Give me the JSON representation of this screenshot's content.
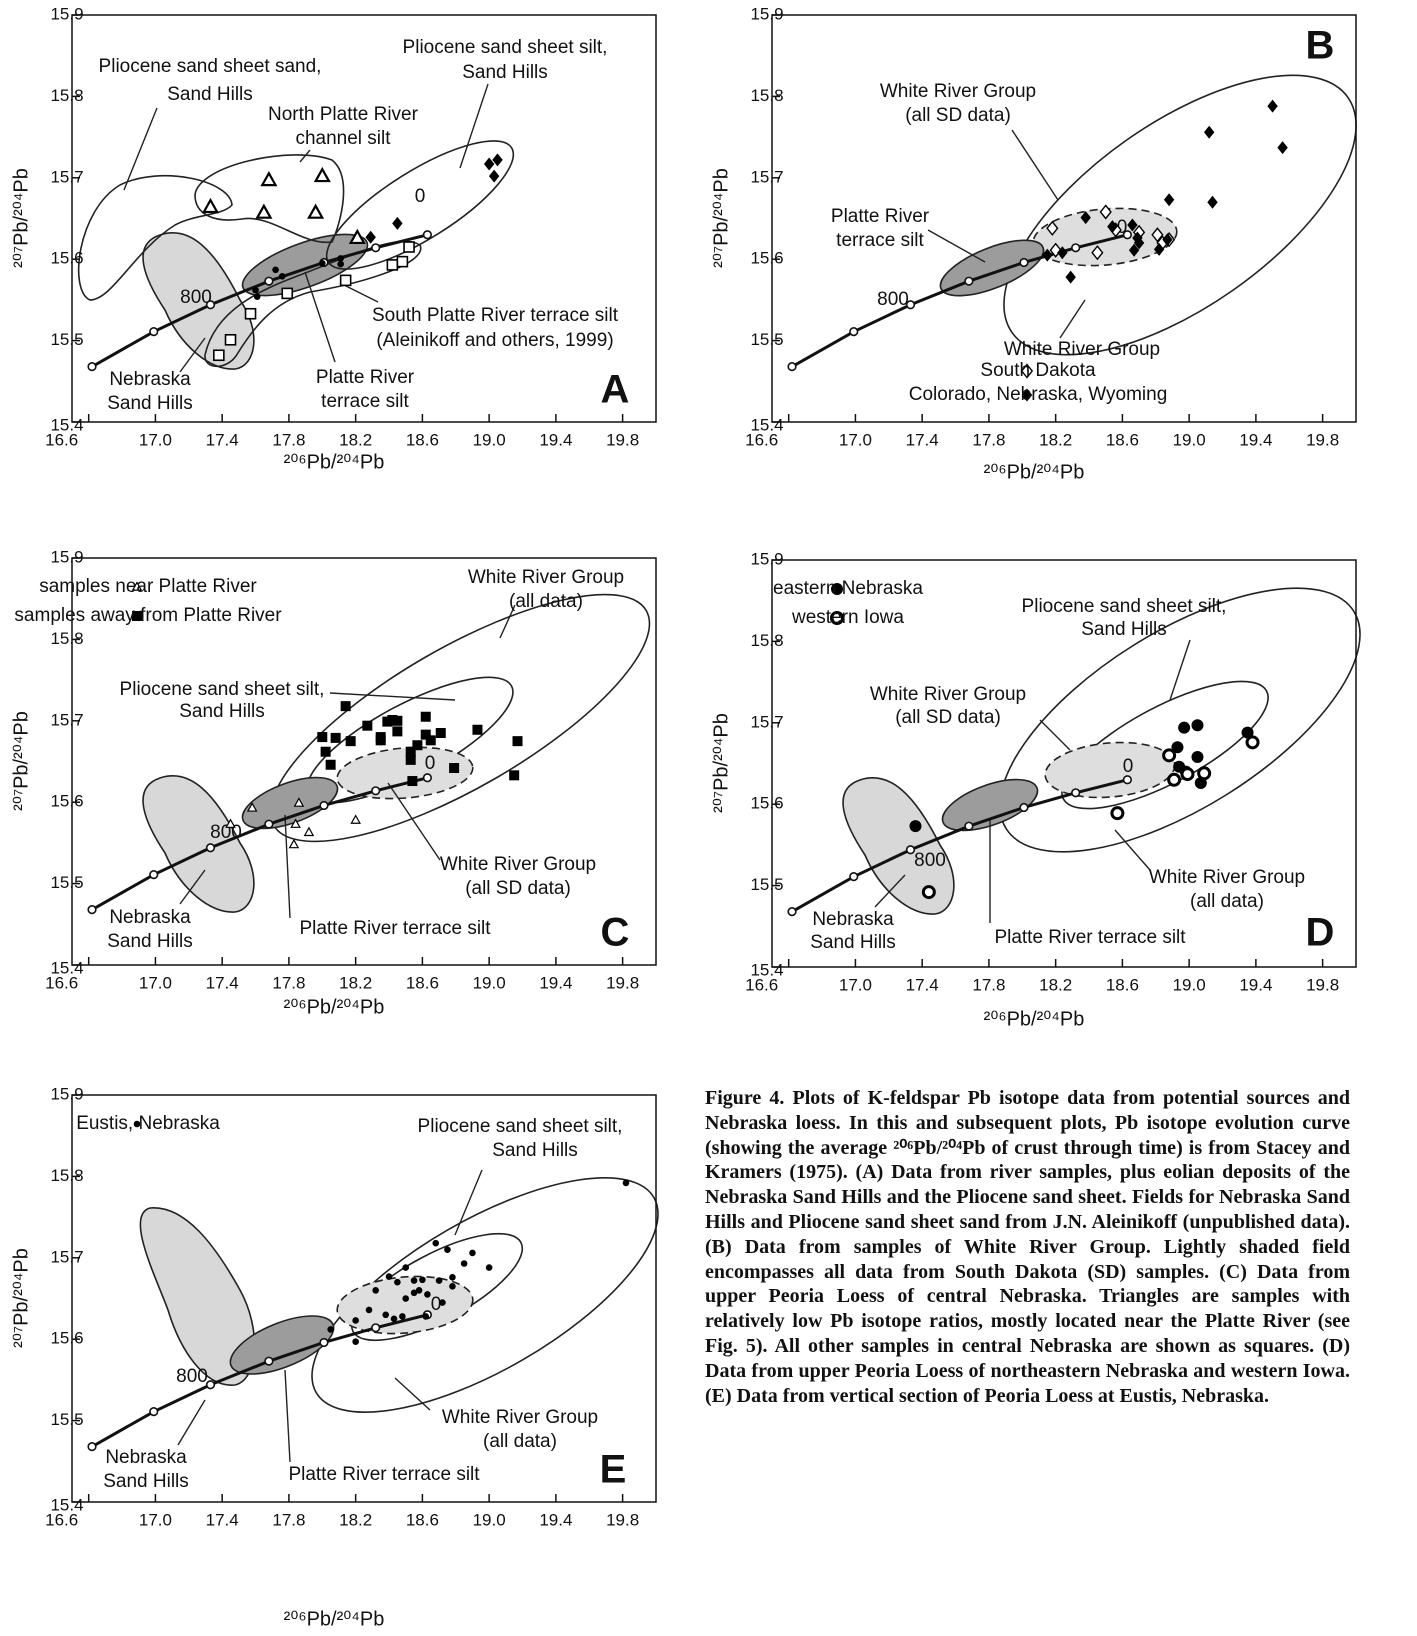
{
  "chart_data": [
    {
      "type": "scatter",
      "panel_label": "A",
      "x_label": "²⁰⁶Pb/²⁰⁴Pb",
      "y_label": "²⁰⁷Pb/²⁰⁴Pb",
      "xlim": [
        16.5,
        20.0
      ],
      "ylim": [
        15.4,
        15.9
      ],
      "xticks": [
        16.6,
        {
          "value": 17,
          "label": "17.0"
        },
        17.4,
        17.8,
        18.2,
        18.6,
        {
          "value": 19,
          "label": "19.0"
        },
        19.4,
        19.8
      ],
      "yticks": [
        15.4,
        15.5,
        15.6,
        15.7,
        15.8,
        15.9
      ],
      "curve": {
        "x": [
          16.62,
          16.99,
          17.33,
          17.68,
          18.01,
          18.32,
          18.63
        ],
        "y": [
          15.468,
          15.511,
          15.544,
          15.573,
          15.596,
          15.614,
          15.63
        ]
      },
      "series": [
        {
          "marker": "triangle-open",
          "color": "#000000",
          "x": [
            17.33,
            17.68,
            17.65,
            18.0,
            17.96,
            18.21
          ],
          "values": [
            15.664,
            15.697,
            15.657,
            15.702,
            15.657,
            15.626
          ]
        },
        {
          "marker": "square-open",
          "color": "#000000",
          "x": [
            17.38,
            17.45,
            17.57,
            17.79,
            18.14,
            18.42,
            18.48,
            18.52
          ],
          "values": [
            15.482,
            15.501,
            15.533,
            15.558,
            15.574,
            15.593,
            15.597,
            15.615
          ]
        },
        {
          "marker": "dot",
          "color": "#000000",
          "x": [
            17.6,
            17.61,
            17.72,
            17.76,
            18.0,
            18.11,
            18.11
          ],
          "values": [
            15.562,
            15.554,
            15.587,
            15.579,
            15.595,
            15.601,
            15.594
          ]
        },
        {
          "marker": "diamond",
          "color": "#000000",
          "x": [
            18.29,
            18.45,
            19.0,
            19.05,
            19.03
          ],
          "values": [
            15.627,
            15.644,
            15.717,
            15.722,
            15.702
          ]
        }
      ],
      "annotations": [
        "Pliocene sand sheet sand,",
        "Sand Hills",
        "Pliocene sand sheet silt,",
        "Sand Hills",
        "North Platte River",
        "channel silt",
        "0",
        "800",
        "South Platte River terrace silt",
        "(Aleinikoff and others, 1999)",
        "Nebraska",
        "Sand Hills",
        "Platte River",
        "terrace silt"
      ]
    },
    {
      "type": "scatter",
      "panel_label": "B",
      "x_label": "²⁰⁶Pb/²⁰⁴Pb",
      "y_label": "²⁰⁷Pb/²⁰⁴Pb",
      "xlim": [
        16.5,
        20.0
      ],
      "ylim": [
        15.4,
        15.9
      ],
      "xticks": [
        16.6,
        {
          "value": 17,
          "label": "17.0"
        },
        17.4,
        17.8,
        18.2,
        18.6,
        {
          "value": 19,
          "label": "19.0"
        },
        19.4,
        19.8
      ],
      "yticks": [
        15.4,
        15.5,
        15.6,
        15.7,
        15.8,
        15.9
      ],
      "curve": {
        "x": [
          16.62,
          16.99,
          17.33,
          17.68,
          18.01,
          18.32,
          18.63
        ],
        "y": [
          15.468,
          15.511,
          15.544,
          15.573,
          15.596,
          15.614,
          15.63
        ]
      },
      "legend": "lower right",
      "series": [
        {
          "name": "South Dakota",
          "marker": "diamond-open",
          "color": "#000000",
          "x": [
            18.18,
            18.2,
            18.5,
            18.45,
            18.56,
            18.7,
            18.81,
            18.84,
            18.88
          ],
          "values": [
            15.638,
            15.611,
            15.658,
            15.608,
            15.636,
            15.633,
            15.63,
            15.62,
            15.624
          ]
        },
        {
          "name": "Colorado, Nebraska, Wyoming",
          "marker": "diamond",
          "color": "#000000",
          "x": [
            18.24,
            18.38,
            18.29,
            18.54,
            18.69,
            18.66,
            18.67,
            18.7,
            18.88,
            18.82,
            18.87,
            19.12,
            19.14,
            19.5,
            19.56,
            18.15
          ],
          "values": [
            15.608,
            15.651,
            15.578,
            15.64,
            15.626,
            15.642,
            15.611,
            15.62,
            15.673,
            15.612,
            15.624,
            15.756,
            15.67,
            15.788,
            15.737,
            15.605
          ]
        }
      ],
      "annotations": [
        "White River Group",
        "(all SD data)",
        "Platte River",
        "terrace silt",
        "800",
        "0",
        "White River Group"
      ]
    },
    {
      "type": "scatter",
      "panel_label": "C",
      "x_label": "²⁰⁶Pb/²⁰⁴Pb",
      "y_label": "²⁰⁷Pb/²⁰⁴Pb",
      "xlim": [
        16.5,
        20.0
      ],
      "ylim": [
        15.4,
        15.9
      ],
      "xticks": [
        16.6,
        {
          "value": 17,
          "label": "17.0"
        },
        17.4,
        17.8,
        18.2,
        18.6,
        {
          "value": 19,
          "label": "19.0"
        },
        19.4,
        19.8
      ],
      "yticks": [
        15.4,
        15.5,
        15.6,
        15.7,
        15.8,
        15.9
      ],
      "curve": {
        "x": [
          16.62,
          16.99,
          17.33,
          17.68,
          18.01,
          18.32,
          18.63
        ],
        "y": [
          15.468,
          15.511,
          15.544,
          15.573,
          15.596,
          15.614,
          15.63
        ]
      },
      "legend": "upper left",
      "series": [
        {
          "name": "samples near Platte River",
          "marker": "triangle-small",
          "color": "#000000",
          "x": [
            17.45,
            17.58,
            17.86,
            17.84,
            17.83,
            17.92,
            18.2
          ],
          "values": [
            15.573,
            15.593,
            15.599,
            15.573,
            15.548,
            15.563,
            15.578
          ]
        },
        {
          "name": "samples away from Platte River",
          "marker": "square",
          "color": "#000000",
          "x": [
            18.14,
            18.0,
            18.02,
            18.05,
            18.08,
            18.17,
            18.27,
            18.35,
            18.35,
            18.39,
            18.42,
            18.45,
            18.45,
            18.53,
            18.53,
            18.54,
            18.57,
            18.62,
            18.62,
            18.65,
            18.71,
            18.79,
            18.93,
            19.17,
            19.15
          ],
          "values": [
            15.718,
            15.68,
            15.662,
            15.646,
            15.679,
            15.675,
            15.694,
            15.68,
            15.676,
            15.699,
            15.701,
            15.7,
            15.687,
            15.662,
            15.652,
            15.626,
            15.67,
            15.705,
            15.683,
            15.676,
            15.685,
            15.642,
            15.689,
            15.675,
            15.633
          ]
        }
      ],
      "annotations": [
        "White River Group",
        "(all data)",
        "Pliocene sand sheet silt,",
        "Sand Hills",
        "0",
        "800",
        "White River Group",
        "(all SD data)",
        "Nebraska",
        "Sand Hills",
        "Platte River terrace silt"
      ]
    },
    {
      "type": "scatter",
      "panel_label": "D",
      "x_label": "²⁰⁶Pb/²⁰⁴Pb",
      "y_label": "²⁰⁷Pb/²⁰⁴Pb",
      "xlim": [
        16.5,
        20.0
      ],
      "ylim": [
        15.4,
        15.9
      ],
      "xticks": [
        16.6,
        {
          "value": 17,
          "label": "17.0"
        },
        17.4,
        17.8,
        18.2,
        18.6,
        {
          "value": 19,
          "label": "19.0"
        },
        19.4,
        19.8
      ],
      "yticks": [
        15.4,
        15.5,
        15.6,
        15.7,
        15.8,
        15.9
      ],
      "curve": {
        "x": [
          16.62,
          16.99,
          17.33,
          17.68,
          18.01,
          18.32,
          18.63
        ],
        "y": [
          15.468,
          15.511,
          15.544,
          15.573,
          15.596,
          15.614,
          15.63
        ]
      },
      "legend": "upper left",
      "series": [
        {
          "name": "eastern Nebraska",
          "marker": "circle",
          "color": "#000000",
          "x": [
            17.36,
            18.93,
            18.97,
            19.05,
            18.94,
            18.98,
            19.05,
            19.07,
            19.35
          ],
          "values": [
            15.573,
            15.67,
            15.694,
            15.697,
            15.646,
            15.64,
            15.658,
            15.626,
            15.688
          ]
        },
        {
          "name": "western Iowa",
          "marker": "circle-open",
          "color": "#000000",
          "x": [
            17.44,
            18.57,
            18.88,
            18.91,
            18.99,
            19.09,
            19.38
          ],
          "values": [
            15.492,
            15.589,
            15.66,
            15.63,
            15.637,
            15.638,
            15.676
          ]
        }
      ],
      "annotations": [
        "Pliocene sand sheet silt,",
        "Sand Hills",
        "White River Group",
        "(all SD data)",
        "0",
        "800",
        "White River Group",
        "(all data)",
        "Nebraska",
        "Sand Hills",
        "Platte River terrace silt"
      ]
    },
    {
      "type": "scatter",
      "panel_label": "E",
      "x_label": "²⁰⁶Pb/²⁰⁴Pb",
      "y_label": "²⁰⁷Pb/²⁰⁴Pb",
      "xlim": [
        16.5,
        20.0
      ],
      "ylim": [
        15.4,
        15.9
      ],
      "xticks": [
        16.6,
        {
          "value": 17,
          "label": "17.0"
        },
        17.4,
        17.8,
        18.2,
        18.6,
        {
          "value": 19,
          "label": "19.0"
        },
        19.4,
        19.8
      ],
      "yticks": [
        15.4,
        15.5,
        15.6,
        15.7,
        15.8,
        15.9
      ],
      "curve": {
        "x": [
          16.62,
          16.99,
          17.33,
          17.68,
          18.01,
          18.32,
          18.63
        ],
        "y": [
          15.468,
          15.511,
          15.544,
          15.573,
          15.596,
          15.614,
          15.63
        ]
      },
      "legend": "upper left",
      "series": [
        {
          "name": "Eustis, Nebraska",
          "marker": "dot",
          "color": "#000000",
          "x": [
            18.05,
            18.2,
            18.2,
            18.28,
            18.32,
            18.38,
            18.4,
            18.43,
            18.45,
            18.48,
            18.5,
            18.5,
            18.55,
            18.55,
            18.58,
            18.6,
            18.62,
            18.63,
            18.68,
            18.7,
            18.72,
            18.75,
            18.78,
            18.78,
            18.85,
            18.9,
            19.0,
            19.82
          ],
          "values": [
            15.612,
            15.597,
            15.623,
            15.636,
            15.66,
            15.63,
            15.677,
            15.625,
            15.67,
            15.628,
            15.65,
            15.688,
            15.672,
            15.657,
            15.66,
            15.673,
            15.628,
            15.655,
            15.718,
            15.672,
            15.645,
            15.71,
            15.665,
            15.676,
            15.693,
            15.706,
            15.688,
            15.792
          ]
        }
      ],
      "annotations": [
        "Pliocene sand sheet silt,",
        "Sand Hills",
        "0",
        "800",
        "White River Group",
        "(all data)",
        "Nebraska",
        "Sand Hills",
        "Platte River terrace silt"
      ]
    }
  ],
  "caption": "Figure 4. Plots of K-feldspar Pb isotope data from potential sources and Nebraska loess. In this and subsequent plots, Pb isotope evolution curve (showing the average ²⁰⁶Pb/²⁰⁴Pb of crust through time) is from Stacey and Kramers (1975). (A) Data from river samples, plus eolian deposits of the Nebraska Sand Hills and the Pliocene sand sheet. Fields for Nebraska Sand Hills and Pliocene sand sheet sand from J.N. Aleinikoff (unpublished data). (B) Data from samples of White River Group. Lightly shaded field encompasses all data from South Dakota (SD) samples. (C) Data from upper Peoria Loess of central Nebraska. Triangles are samples with relatively low Pb isotope ratios, mostly located near the Platte River (see Fig. 5). All other samples in central Nebraska are shown as squares. (D) Data from upper Peoria Loess of northeastern Nebraska and western Iowa. (E) Data from vertical section of Peoria Loess at Eustis, Nebraska."
}
